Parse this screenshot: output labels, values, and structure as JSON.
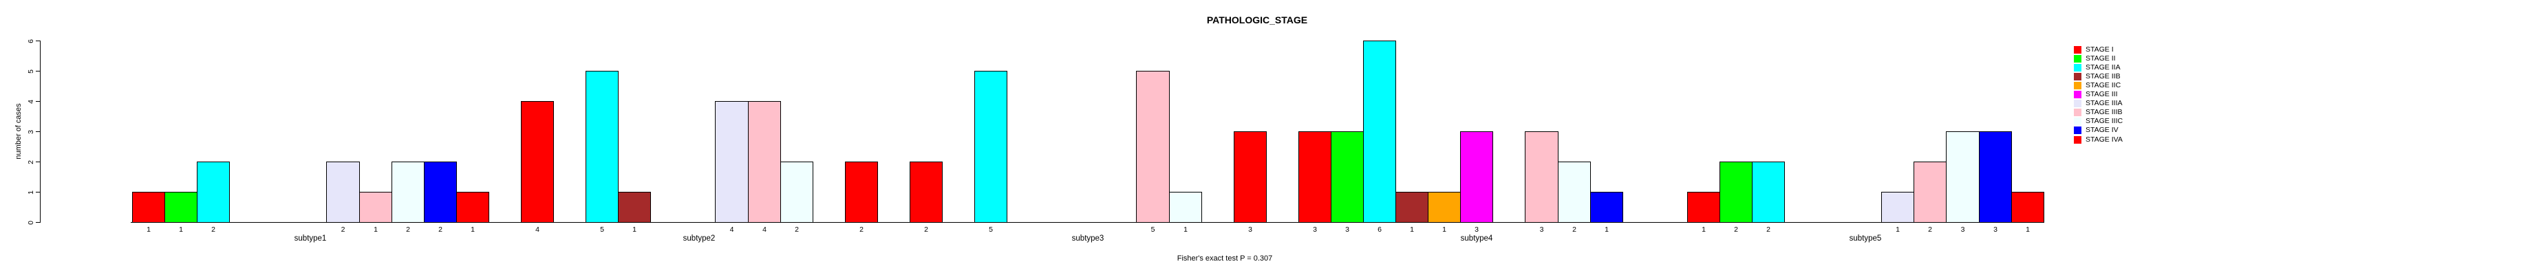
{
  "title": "PATHOLOGIC_STAGE",
  "footer": "Fisher's exact test P = 0.307",
  "y_axis": {
    "label": "number of cases",
    "ticks": [
      0,
      1,
      2,
      3,
      4,
      5,
      6
    ]
  },
  "chart_data": {
    "type": "bar",
    "title": "PATHOLOGIC_STAGE",
    "xlabel": "",
    "ylabel": "number of cases",
    "ylim": [
      0,
      6
    ],
    "yticks": [
      0,
      1,
      2,
      3,
      4,
      5,
      6
    ],
    "grid": false,
    "legend_position": "right",
    "bar_value_labels": "shown under each nonzero bar",
    "annotation": "Fisher's exact test P = 0.307",
    "categories": [
      "subtype1",
      "subtype2",
      "subtype3",
      "subtype4",
      "subtype5"
    ],
    "series": [
      {
        "name": "STAGE I",
        "color": "#FF0000",
        "values": [
          1,
          4,
          2,
          3,
          1
        ]
      },
      {
        "name": "STAGE II",
        "color": "#00FF00",
        "values": [
          1,
          0,
          0,
          3,
          2
        ]
      },
      {
        "name": "STAGE IIA",
        "color": "#00FFFF",
        "values": [
          2,
          5,
          5,
          6,
          2
        ]
      },
      {
        "name": "STAGE IIB",
        "color": "#A52A2A",
        "values": [
          0,
          1,
          0,
          1,
          0
        ]
      },
      {
        "name": "STAGE IIC",
        "color": "#FFA500",
        "values": [
          0,
          0,
          0,
          1,
          0
        ]
      },
      {
        "name": "STAGE III",
        "color": "#FF00FF",
        "values": [
          0,
          0,
          0,
          3,
          0
        ]
      },
      {
        "name": "STAGE IIIA",
        "color": "#E6E6FA",
        "values": [
          2,
          4,
          0,
          0,
          1
        ]
      },
      {
        "name": "STAGE IIIB",
        "color": "#FFC0CB",
        "values": [
          1,
          4,
          5,
          3,
          2
        ]
      },
      {
        "name": "STAGE IIIC",
        "color": "#F0FFFF",
        "values": [
          2,
          2,
          1,
          2,
          3
        ]
      },
      {
        "name": "STAGE IV",
        "color": "#0000FF",
        "values": [
          2,
          0,
          0,
          1,
          3
        ]
      },
      {
        "name": "STAGE IVA",
        "color": "#FF0000",
        "values": [
          1,
          2,
          3,
          0,
          1
        ]
      }
    ]
  }
}
